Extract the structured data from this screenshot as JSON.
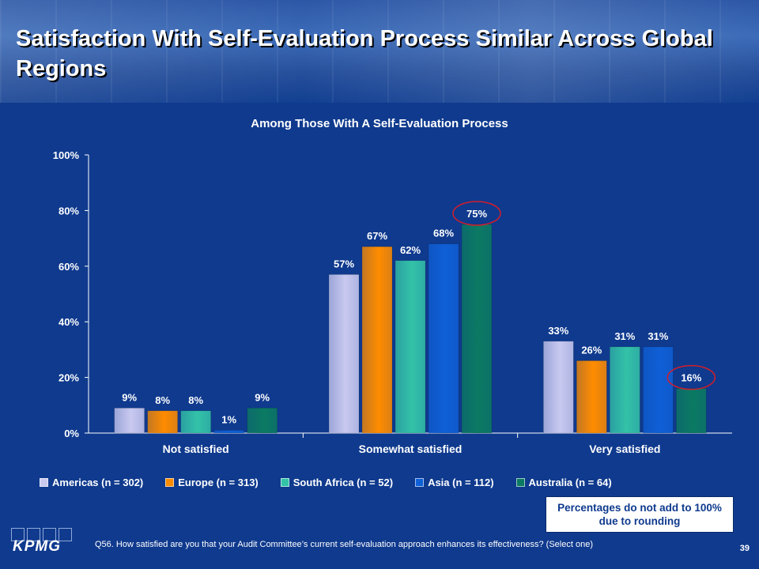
{
  "slide": {
    "title": "Satisfaction With Self-Evaluation Process Similar Across Global Regions",
    "note": "Percentages do not add to 100% due to rounding",
    "footnote": "Q56. How satisfied are you that your Audit Committee’s current self-evaluation approach enhances its effectiveness? (Select one)",
    "page_number": "39",
    "logo_text": "KPMG"
  },
  "colors": {
    "background": "#0f3a8e",
    "americas": "#c9c9f0",
    "europe": "#ff8c00",
    "south_africa": "#33c2a8",
    "asia": "#0f5fd6",
    "australia": "#0b7a62",
    "highlight_circle": "#d21e2b"
  },
  "chart_data": {
    "type": "bar",
    "title": "Among Those With A Self-Evaluation Process",
    "categories": [
      "Not satisfied",
      "Somewhat satisfied",
      "Very satisfied"
    ],
    "series": [
      {
        "name": "Americas (n = 302)",
        "values": [
          9,
          57,
          33
        ],
        "labels": [
          "9%",
          "57%",
          "33%"
        ],
        "color": "#c9c9f0"
      },
      {
        "name": "Europe (n = 313)",
        "values": [
          8,
          67,
          26
        ],
        "labels": [
          "8%",
          "67%",
          "26%"
        ],
        "color": "#ff8c00"
      },
      {
        "name": "South Africa (n = 52)",
        "values": [
          8,
          62,
          31
        ],
        "labels": [
          "8%",
          "62%",
          "31%"
        ],
        "color": "#33c2a8"
      },
      {
        "name": "Asia (n = 112)",
        "values": [
          1,
          68,
          31
        ],
        "labels": [
          "1%",
          "68%",
          "31%"
        ],
        "color": "#0f5fd6"
      },
      {
        "name": "Australia (n = 64)",
        "values": [
          9,
          75,
          16
        ],
        "labels": [
          "9%",
          "75%",
          "16%"
        ],
        "color": "#0b7a62"
      }
    ],
    "y_ticks": [
      "0%",
      "20%",
      "40%",
      "60%",
      "80%",
      "100%"
    ],
    "ylim": [
      0,
      100
    ],
    "highlighted": [
      {
        "series": 4,
        "category": 1
      },
      {
        "series": 4,
        "category": 2
      }
    ],
    "grid": false,
    "legend_position": "bottom"
  }
}
